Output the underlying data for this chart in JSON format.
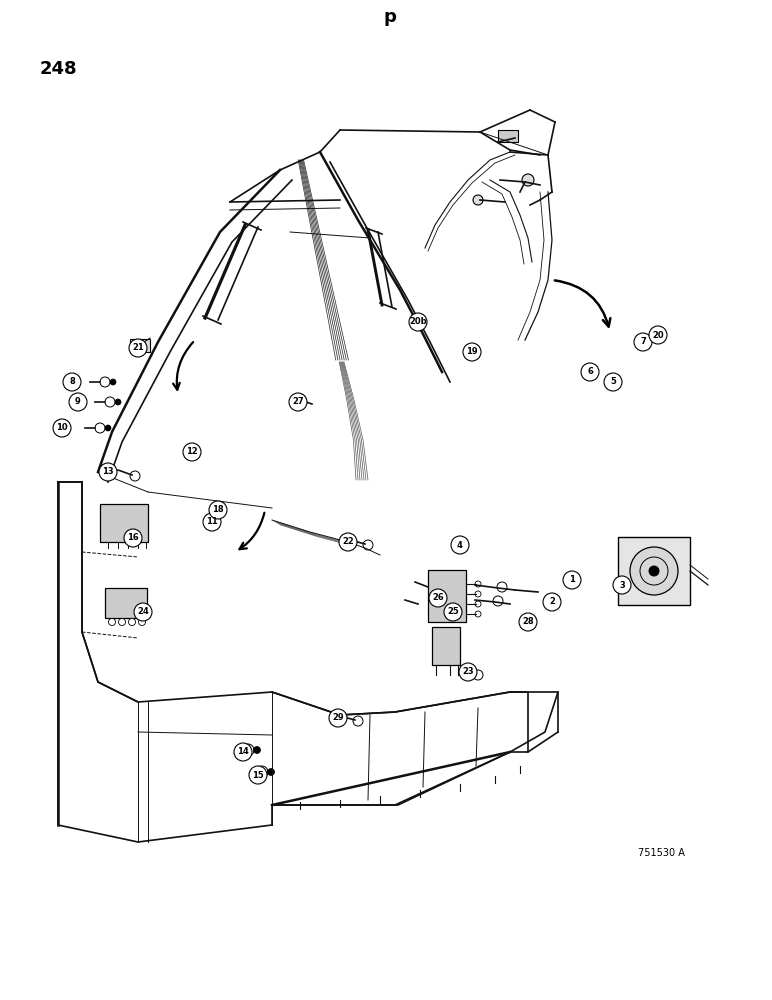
{
  "page_number": "248",
  "diagram_code": "751530 A",
  "background_color": "#ffffff",
  "text_color": "#000000",
  "figsize": [
    7.72,
    10.0
  ],
  "dpi": 100,
  "labels": [
    [
      "1",
      572,
      420
    ],
    [
      "2",
      552,
      398
    ],
    [
      "3",
      622,
      415
    ],
    [
      "4",
      460,
      455
    ],
    [
      "5",
      613,
      618
    ],
    [
      "6",
      590,
      628
    ],
    [
      "7",
      643,
      658
    ],
    [
      "8",
      72,
      618
    ],
    [
      "9",
      78,
      598
    ],
    [
      "10",
      62,
      572
    ],
    [
      "11",
      212,
      478
    ],
    [
      "12",
      192,
      548
    ],
    [
      "13",
      108,
      528
    ],
    [
      "14",
      243,
      248
    ],
    [
      "15",
      258,
      225
    ],
    [
      "16",
      133,
      462
    ],
    [
      "18",
      218,
      490
    ],
    [
      "19",
      472,
      648
    ],
    [
      "20",
      658,
      665
    ],
    [
      "20b",
      418,
      678
    ],
    [
      "21",
      138,
      652
    ],
    [
      "22",
      348,
      458
    ],
    [
      "23",
      468,
      328
    ],
    [
      "24",
      143,
      388
    ],
    [
      "25",
      453,
      388
    ],
    [
      "26",
      438,
      402
    ],
    [
      "27",
      298,
      598
    ],
    [
      "28",
      528,
      378
    ],
    [
      "29",
      338,
      282
    ]
  ]
}
